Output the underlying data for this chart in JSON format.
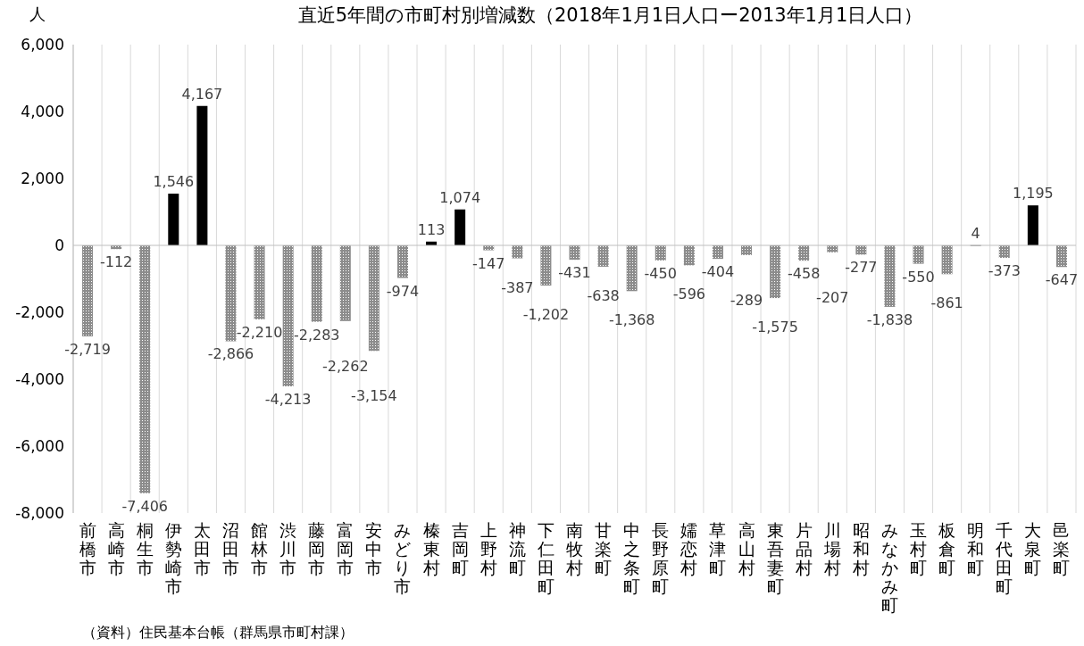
{
  "chart_data": {
    "type": "bar",
    "title": "直近5年間の市町村別増減数（2018年1月1日人口ー2013年1月1日人口）",
    "ylabel": "人",
    "categories": [
      "前橋市",
      "高崎市",
      "桐生市",
      "伊勢崎市",
      "太田市",
      "沼田市",
      "館林市",
      "渋川市",
      "藤岡市",
      "富岡市",
      "安中市",
      "みどり市",
      "榛東村",
      "吉岡町",
      "上野村",
      "神流町",
      "下仁田町",
      "南牧村",
      "甘楽町",
      "中之条町",
      "長野原町",
      "嬬恋村",
      "草津町",
      "高山村",
      "東吾妻町",
      "片品村",
      "川場村",
      "昭和村",
      "みなかみ町",
      "玉村町",
      "板倉町",
      "明和町",
      "千代田町",
      "大泉町",
      "邑楽町"
    ],
    "values": [
      -2719,
      -112,
      -7406,
      1546,
      4167,
      -2866,
      -2210,
      -4213,
      -2283,
      -2262,
      -3154,
      -974,
      113,
      1074,
      -147,
      -387,
      -1202,
      -431,
      -638,
      -1368,
      -450,
      -596,
      -404,
      -289,
      -1575,
      -458,
      -207,
      -277,
      -1838,
      -550,
      -861,
      4,
      -373,
      1195,
      -647
    ],
    "value_labels": [
      "-2,719",
      "-112",
      "-7,406",
      "1,546",
      "4,167",
      "-2,866",
      "-2,210",
      "-4,213",
      "-2,283",
      "-2,262",
      "-3,154",
      "-974",
      "113",
      "1,074",
      "-147",
      "-387",
      "-1,202",
      "-431",
      "-638",
      "-1,368",
      "-450",
      "-596",
      "-404",
      "-289",
      "-1,575",
      "-458",
      "-207",
      "-277",
      "-1,838",
      "-550",
      "-861",
      "4",
      "-373",
      "1,195",
      "-647"
    ],
    "colors": [
      "#8c8c8c",
      "#8c8c8c",
      "#8c8c8c",
      "#000000",
      "#000000",
      "#8c8c8c",
      "#8c8c8c",
      "#8c8c8c",
      "#8c8c8c",
      "#8c8c8c",
      "#8c8c8c",
      "#8c8c8c",
      "#000000",
      "#000000",
      "#8c8c8c",
      "#8c8c8c",
      "#8c8c8c",
      "#8c8c8c",
      "#8c8c8c",
      "#8c8c8c",
      "#8c8c8c",
      "#8c8c8c",
      "#8c8c8c",
      "#8c8c8c",
      "#8c8c8c",
      "#8c8c8c",
      "#8c8c8c",
      "#8c8c8c",
      "#8c8c8c",
      "#8c8c8c",
      "#8c8c8c",
      "#000000",
      "#8c8c8c",
      "#000000",
      "#8c8c8c"
    ],
    "ylim": [
      -8000,
      6000
    ],
    "yticks": [
      {
        "value": -8000,
        "label": "-8,000"
      },
      {
        "value": -6000,
        "label": "-6,000"
      },
      {
        "value": -4000,
        "label": "-4,000"
      },
      {
        "value": -2000,
        "label": "-2,000"
      },
      {
        "value": 0,
        "label": "0"
      },
      {
        "value": 2000,
        "label": "2,000"
      },
      {
        "value": 4000,
        "label": "4,000"
      },
      {
        "value": 6000,
        "label": "6,000"
      }
    ],
    "grid": "x",
    "annotations": [
      "（資料）住民基本台帳（群馬県市町村課）"
    ]
  }
}
